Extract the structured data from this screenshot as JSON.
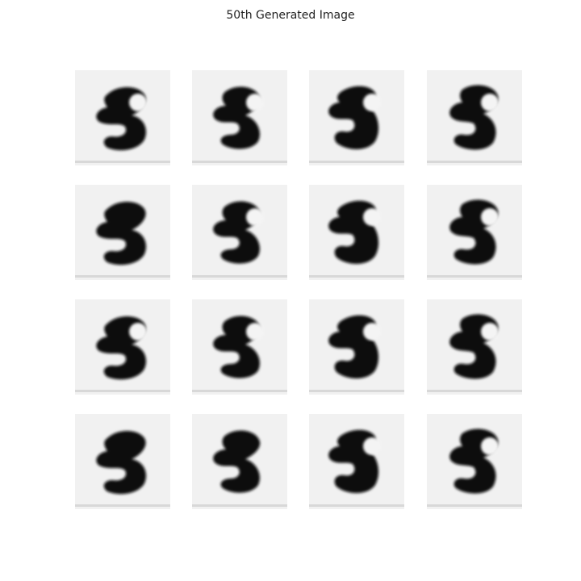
{
  "title": "50th Generated Image",
  "grid": {
    "rows": 4,
    "cols": 4
  },
  "colors": {
    "background": "#ffffff",
    "tile": "#f1f1f1",
    "ink": "#111111"
  },
  "samples": [
    {
      "variant": 0,
      "gap": true
    },
    {
      "variant": 1,
      "gap": true
    },
    {
      "variant": 2,
      "gap": true
    },
    {
      "variant": 3,
      "gap": true
    },
    {
      "variant": 0,
      "gap": false
    },
    {
      "variant": 1,
      "gap": true
    },
    {
      "variant": 2,
      "gap": true
    },
    {
      "variant": 3,
      "gap": true
    },
    {
      "variant": 0,
      "gap": true
    },
    {
      "variant": 1,
      "gap": true
    },
    {
      "variant": 2,
      "gap": true
    },
    {
      "variant": 3,
      "gap": true
    },
    {
      "variant": 0,
      "gap": false
    },
    {
      "variant": 1,
      "gap": false
    },
    {
      "variant": 2,
      "gap": true
    },
    {
      "variant": 3,
      "gap": true
    }
  ]
}
